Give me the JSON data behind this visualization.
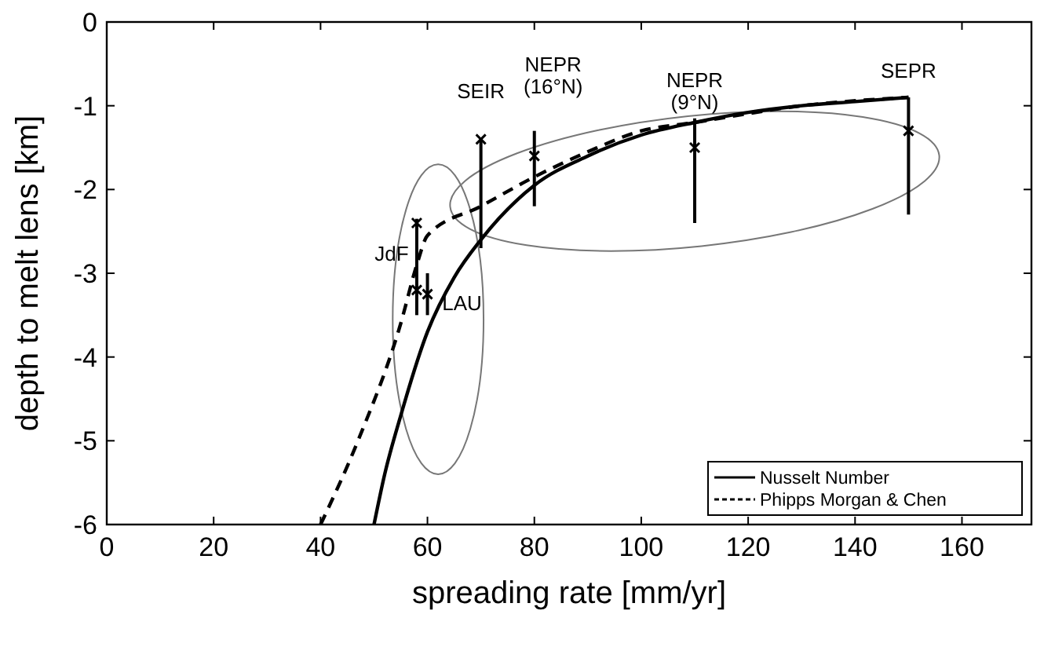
{
  "chart_data": {
    "type": "line",
    "xlabel": "spreading rate [mm/yr]",
    "ylabel": "depth to melt lens [km]",
    "xlim": [
      0,
      173
    ],
    "xticks": [
      0,
      20,
      40,
      60,
      80,
      100,
      120,
      140,
      160
    ],
    "ylim": [
      -6,
      0
    ],
    "yticks": [
      -6,
      -5,
      -4,
      -3,
      -2,
      -1,
      0
    ],
    "grid": false,
    "legend": "bottom right",
    "series": [
      {
        "name": "Nusselt Number",
        "color": "#000000",
        "line_style": "solid",
        "marker": "none",
        "x": [
          50,
          52,
          55,
          60,
          65,
          70,
          80,
          90,
          100,
          110,
          120,
          130,
          140,
          150
        ],
        "values": [
          -6,
          -5.4,
          -4.7,
          -3.7,
          -3.05,
          -2.6,
          -1.95,
          -1.6,
          -1.35,
          -1.2,
          -1.08,
          -1.0,
          -0.95,
          -0.9
        ]
      },
      {
        "name": "Phipps Morgan & Chen",
        "color": "#000000",
        "line_style": "dashed",
        "marker": "none",
        "x": [
          40,
          47,
          55,
          58,
          60,
          70,
          80,
          90,
          100,
          110,
          130,
          150
        ],
        "values": [
          -6,
          -5,
          -3.6,
          -2.9,
          -2.55,
          -2.2,
          -1.85,
          -1.55,
          -1.3,
          -1.2,
          -1.0,
          -0.9
        ]
      },
      {
        "type": "scatter",
        "color": "#000000",
        "marker": "cross",
        "x": [
          58,
          58,
          60,
          70,
          80,
          110,
          150
        ],
        "values": [
          -2.4,
          -3.2,
          -3.25,
          -1.4,
          -1.6,
          -1.5,
          -1.3
        ],
        "errors": [
          [
            -3.5,
            -2.35
          ],
          null,
          [
            -3.5,
            -3.0
          ],
          [
            -2.7,
            -1.4
          ],
          [
            -2.2,
            -1.3
          ],
          [
            -2.4,
            -1.15
          ],
          [
            -2.3,
            -0.9
          ]
        ]
      }
    ],
    "annotations": [
      {
        "text": "JdF",
        "x": 58,
        "y": -2.4
      },
      {
        "text": "LAU",
        "x": 60,
        "y": -3.25
      },
      {
        "text": "SEIR",
        "x": 70,
        "y": -1.4
      },
      {
        "text": "NEPR\n(16°N)",
        "x": 80,
        "y": -1.6
      },
      {
        "text": "NEPR\n(9°N)",
        "x": 110,
        "y": -1.15
      },
      {
        "text": "SEPR",
        "x": 150,
        "y": -1.3
      }
    ]
  }
}
